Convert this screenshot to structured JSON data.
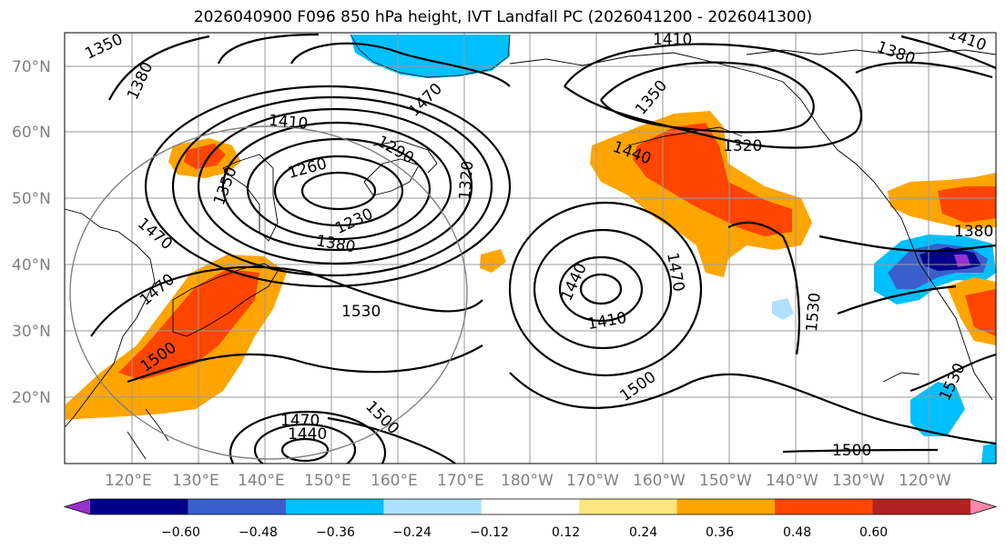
{
  "title": "2026040900 F096 850 hPa height, IVT Landfall PC (2026041200 - 2026041300)",
  "map": {
    "lat_labels": [
      "70°N",
      "60°N",
      "50°N",
      "40°N",
      "30°N",
      "20°N"
    ],
    "lon_labels": [
      "120°E",
      "130°E",
      "140°E",
      "150°E",
      "160°E",
      "170°E",
      "180°W",
      "170°W",
      "160°W",
      "150°W",
      "140°W",
      "130°W",
      "120°W"
    ],
    "contour_labels": [
      "1350",
      "1380",
      "1410",
      "1470",
      "1410",
      "1380",
      "1410",
      "1290",
      "1260",
      "1350",
      "1230",
      "1320",
      "1380",
      "1470",
      "1470",
      "1440",
      "1320",
      "1440",
      "1470",
      "1410",
      "1530",
      "1530",
      "1500",
      "1500",
      "1470",
      "1440",
      "1500",
      "1530",
      "1500",
      "1380",
      "1350"
    ]
  },
  "colorbar": {
    "ticks": [
      "−0.60",
      "−0.48",
      "−0.36",
      "−0.24",
      "−0.12",
      "0.12",
      "0.24",
      "0.36",
      "0.48",
      "0.60"
    ],
    "colors": [
      "#9932cc",
      "#00008b",
      "#3a5fcd",
      "#00bfff",
      "#b0e0ff",
      "#ffffff",
      "#ffe680",
      "#ffa500",
      "#ff4500",
      "#b22222",
      "#ff88aa"
    ]
  }
}
